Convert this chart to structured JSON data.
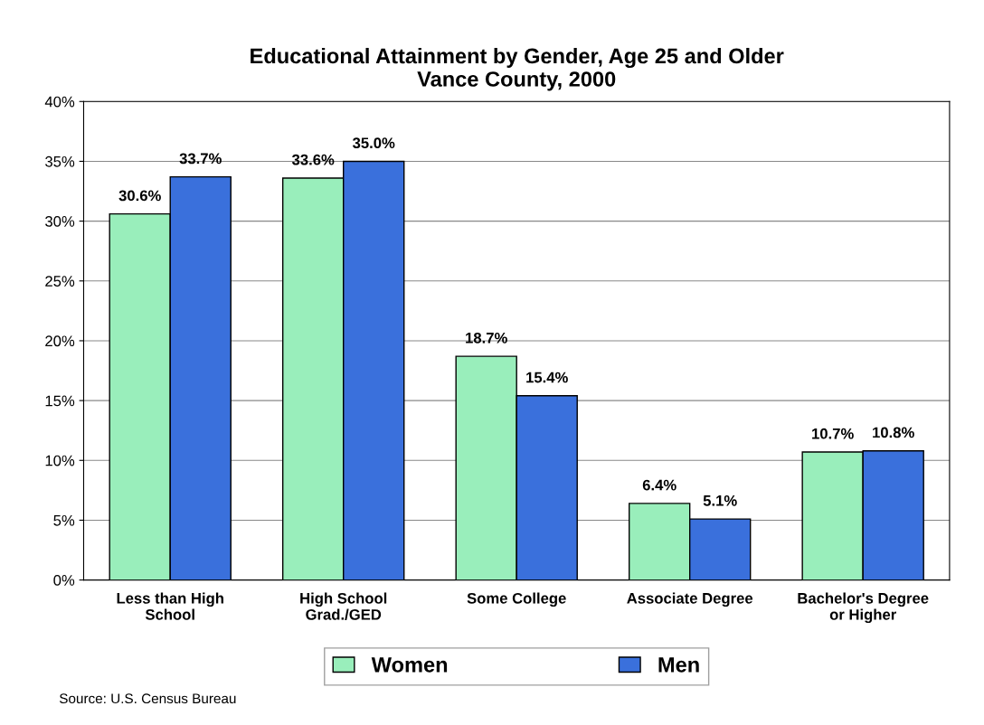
{
  "chart_data": {
    "type": "bar",
    "title": "Educational Attainment by Gender, Age 25 and Older\nVance County, 2000",
    "categories": [
      "Less than High\nSchool",
      "High School\nGrad./GED",
      "Some College",
      "Associate Degree",
      "Bachelor's Degree\nor Higher"
    ],
    "series": [
      {
        "name": "Women",
        "color": "#99eebb",
        "values": [
          30.6,
          33.6,
          18.7,
          6.4,
          10.7
        ],
        "value_labels": [
          "30.6%",
          "33.6%",
          "18.7%",
          "6.4%",
          "10.7%"
        ]
      },
      {
        "name": "Men",
        "color": "#3a70dc",
        "values": [
          33.7,
          35.0,
          15.4,
          5.1,
          10.8
        ],
        "value_labels": [
          "33.7%",
          "35.0%",
          "15.4%",
          "5.1%",
          "10.8%"
        ]
      }
    ],
    "ylim": [
      0,
      40
    ],
    "yticks": [
      {
        "value": 0,
        "label": "0%"
      },
      {
        "value": 5,
        "label": "5%"
      },
      {
        "value": 10,
        "label": "10%"
      },
      {
        "value": 15,
        "label": "15%"
      },
      {
        "value": 20,
        "label": "20%"
      },
      {
        "value": 25,
        "label": "25%"
      },
      {
        "value": 30,
        "label": "30%"
      },
      {
        "value": 35,
        "label": "35%"
      },
      {
        "value": 40,
        "label": "40%"
      }
    ],
    "grid": "y",
    "legend": "bottom",
    "annotations": [
      "Source: U.S. Census Bureau"
    ]
  }
}
